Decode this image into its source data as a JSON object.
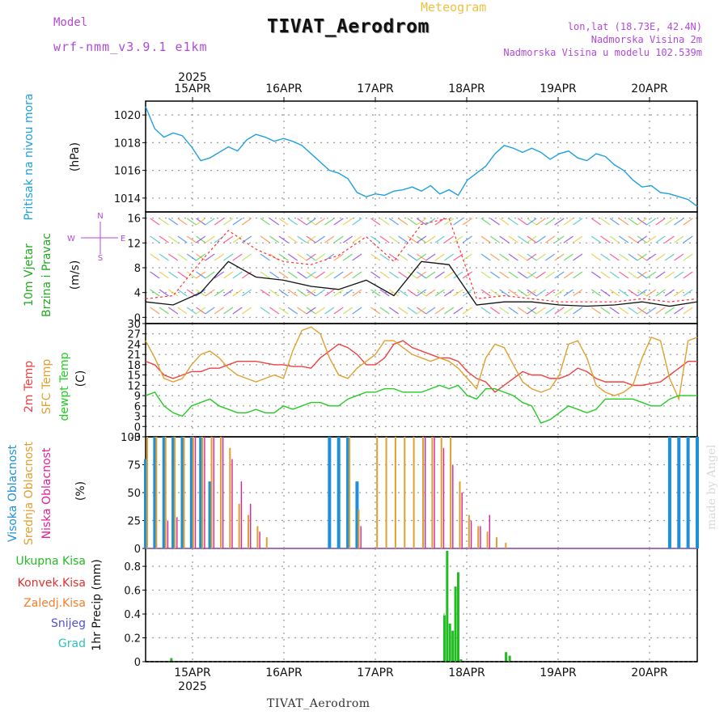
{
  "header": {
    "model_label": "Model",
    "model_name": "wrf-nmm_v3.9.1 e1km",
    "title": "TIVAT_Aerodrom",
    "meteogram_label": "Meteogram",
    "lonlat": "lon,lat (18.73E, 42.4N)",
    "elevation": "Nadmorska Visina 2m",
    "elevation_model": "Nadmorska Visina u modelu 102.539m"
  },
  "footer": {
    "station": "TIVAT_Aerodrom",
    "credit": "made by Angel"
  },
  "colors": {
    "pressure": "#1ea0e0",
    "wind_speed": "#111111",
    "wind_gust": "#ff3030",
    "temp2m": "#f04040",
    "sfc_temp": "#e0a030",
    "dewpt": "#22cc22",
    "cloud_high": "#1e90d8",
    "cloud_mid": "#e0a030",
    "cloud_low": "#e0209a",
    "precip_total": "#22bb22",
    "precip_conv": "#e03030",
    "precip_frz": "#f08030",
    "snow": "#5050e0",
    "hail": "#30c0c0",
    "grid": "#888888"
  },
  "chart_data": [
    {
      "type": "line",
      "name": "pressure",
      "labels": [
        "Pritisak na nivou mora",
        "(hPa)"
      ],
      "x_ticks_top_year": "2025",
      "x_ticks": [
        "15APR",
        "16APR",
        "17APR",
        "18APR",
        "19APR",
        "20APR"
      ],
      "ylim": [
        1013,
        1021
      ],
      "y_ticks": [
        1014,
        1016,
        1018,
        1020
      ],
      "grid": true,
      "series": [
        {
          "x": [
            0,
            1,
            2,
            3,
            4,
            5,
            6,
            7,
            8,
            9,
            10,
            11,
            12,
            13,
            14,
            15,
            16,
            17,
            18,
            19,
            20,
            21,
            22,
            23,
            24,
            25,
            26,
            27,
            28,
            29,
            30,
            31,
            32,
            33,
            34,
            35,
            36,
            37,
            38,
            39,
            40,
            41,
            42,
            43,
            44,
            45,
            46,
            47,
            48,
            49,
            50,
            51,
            52,
            53,
            54,
            55,
            56,
            57,
            58,
            59,
            60
          ],
          "values": [
            1020.6,
            1019.0,
            1018.4,
            1018.7,
            1018.5,
            1017.7,
            1016.7,
            1016.9,
            1017.3,
            1017.7,
            1017.4,
            1018.2,
            1018.6,
            1018.4,
            1018.1,
            1018.3,
            1018.1,
            1017.8,
            1017.2,
            1016.6,
            1016.0,
            1015.8,
            1015.4,
            1014.4,
            1014.1,
            1014.3,
            1014.2,
            1014.5,
            1014.6,
            1014.8,
            1014.5,
            1014.9,
            1014.3,
            1014.6,
            1014.2,
            1015.3,
            1015.8,
            1016.3,
            1017.2,
            1017.8,
            1017.6,
            1017.3,
            1017.6,
            1017.3,
            1016.8,
            1017.2,
            1017.4,
            1016.9,
            1016.7,
            1017.2,
            1017.0,
            1016.4,
            1016.0,
            1015.3,
            1014.8,
            1014.9,
            1014.4,
            1014.3,
            1014.1,
            1013.9,
            1013.4
          ]
        }
      ]
    },
    {
      "type": "line",
      "name": "wind",
      "labels": [
        "10m Vjetar",
        "Brzina i Pravac",
        "(m/s)"
      ],
      "direction_legend": [
        "N",
        "E",
        "S",
        "W"
      ],
      "ylim": [
        -1,
        17
      ],
      "y_ticks": [
        0,
        4,
        8,
        12,
        16
      ],
      "grid": true,
      "series": [
        {
          "x": [
            0,
            3,
            6,
            9,
            12,
            15,
            18,
            21,
            24,
            27,
            30,
            33,
            36,
            39,
            42,
            45,
            48,
            51,
            54,
            57,
            60
          ],
          "values": [
            2.5,
            2.0,
            4.0,
            9.0,
            6.5,
            6.0,
            5.0,
            4.5,
            6.0,
            3.5,
            9.0,
            8.5,
            2.0,
            2.5,
            2.5,
            2.0,
            1.8,
            2.0,
            2.5,
            1.8,
            2.5
          ]
        },
        {
          "x": [
            0,
            3,
            6,
            9,
            12,
            15,
            18,
            21,
            24,
            27,
            30,
            33,
            36,
            39,
            42,
            45,
            48,
            51,
            54,
            57,
            60
          ],
          "values": [
            3.0,
            3.5,
            9.0,
            14.0,
            11.0,
            9.0,
            8.5,
            10.0,
            13.0,
            9.0,
            15.0,
            16.0,
            3.0,
            3.5,
            3.0,
            2.5,
            2.5,
            2.5,
            3.0,
            2.5,
            3.0
          ]
        }
      ]
    },
    {
      "type": "line",
      "name": "temperature",
      "labels": [
        "2m Temp",
        "SFC Temp",
        "dewpt Temp",
        "(C)"
      ],
      "ylim": [
        -3,
        30
      ],
      "y_ticks": [
        -3,
        0,
        3,
        6,
        9,
        12,
        15,
        18,
        21,
        24,
        27,
        30
      ],
      "grid": true,
      "series": [
        {
          "x": [
            0,
            1,
            2,
            3,
            4,
            5,
            6,
            7,
            8,
            9,
            10,
            11,
            12,
            13,
            14,
            15,
            16,
            17,
            18,
            19,
            20,
            21,
            22,
            23,
            24,
            25,
            26,
            27,
            28,
            29,
            30,
            31,
            32,
            33,
            34,
            35,
            36,
            37,
            38,
            39,
            40,
            41,
            42,
            43,
            44,
            45,
            46,
            47,
            48,
            49,
            50,
            51,
            52,
            53,
            54,
            55,
            56,
            57,
            58,
            59,
            60
          ],
          "values": [
            19,
            18,
            15,
            14,
            15,
            16,
            16,
            17,
            17,
            18,
            19,
            19,
            19,
            18.5,
            18,
            18,
            17.5,
            17.5,
            17,
            20,
            22,
            24,
            23,
            21,
            18,
            18,
            20,
            24,
            25,
            23,
            22,
            21,
            20,
            20,
            19,
            16,
            14,
            13,
            10,
            12,
            14,
            16,
            15,
            15,
            14,
            14,
            15,
            17,
            16,
            14,
            13,
            13,
            13,
            12,
            12,
            12.5,
            13,
            15,
            17,
            19,
            19
          ]
        },
        {
          "x": [
            0,
            1,
            2,
            3,
            4,
            5,
            6,
            7,
            8,
            9,
            10,
            11,
            12,
            13,
            14,
            15,
            16,
            17,
            18,
            19,
            20,
            21,
            22,
            23,
            24,
            25,
            26,
            27,
            28,
            29,
            30,
            31,
            32,
            33,
            34,
            35,
            36,
            37,
            38,
            39,
            40,
            41,
            42,
            43,
            44,
            45,
            46,
            47,
            48,
            49,
            50,
            51,
            52,
            53,
            54,
            55,
            56,
            57,
            58,
            59,
            60
          ],
          "values": [
            25,
            20,
            14,
            13,
            14,
            18,
            21,
            22,
            20,
            17,
            15,
            14,
            13,
            14,
            15,
            14,
            22,
            28,
            29,
            27,
            20,
            15,
            14,
            17,
            19,
            21,
            25,
            25,
            23,
            21,
            20,
            19,
            20,
            19,
            17,
            14,
            11,
            20,
            24,
            23,
            18,
            13,
            11,
            10,
            11,
            15,
            24,
            25,
            20,
            12,
            10,
            9,
            10,
            12,
            20,
            26,
            25,
            14,
            8,
            25,
            26
          ]
        },
        {
          "x": [
            0,
            1,
            2,
            3,
            4,
            5,
            6,
            7,
            8,
            9,
            10,
            11,
            12,
            13,
            14,
            15,
            16,
            17,
            18,
            19,
            20,
            21,
            22,
            23,
            24,
            25,
            26,
            27,
            28,
            29,
            30,
            31,
            32,
            33,
            34,
            35,
            36,
            37,
            38,
            39,
            40,
            41,
            42,
            43,
            44,
            45,
            46,
            47,
            48,
            49,
            50,
            51,
            52,
            53,
            54,
            55,
            56,
            57,
            58,
            59,
            60
          ],
          "values": [
            9,
            10,
            6,
            4,
            3,
            6,
            7,
            8,
            6,
            5,
            4,
            4,
            5,
            4,
            4,
            6,
            5,
            6,
            7,
            7,
            6,
            6,
            8,
            9,
            10,
            10,
            11,
            11,
            10,
            10,
            10,
            11,
            12,
            11,
            12,
            9,
            8,
            11,
            11,
            10,
            9,
            7,
            6,
            1,
            2,
            4,
            6,
            5,
            4,
            5,
            8,
            8,
            8,
            8,
            7,
            6,
            6,
            8,
            9,
            9,
            9
          ]
        }
      ]
    },
    {
      "type": "bar",
      "name": "cloud",
      "labels": [
        "Visoka Oblacnost",
        "Srednja Oblacnost",
        "Niska Oblacnost",
        "(%)"
      ],
      "ylim": [
        0,
        100
      ],
      "y_ticks": [
        0,
        25,
        50,
        75,
        100
      ],
      "grid": true,
      "series": [
        {
          "name": "high",
          "x": [
            0,
            1,
            2,
            3,
            4,
            5,
            6,
            7,
            20,
            21,
            22,
            23,
            57,
            58,
            59,
            60
          ],
          "values": [
            80,
            100,
            100,
            100,
            100,
            100,
            100,
            60,
            100,
            100,
            100,
            60,
            100,
            100,
            100,
            100
          ]
        },
        {
          "name": "mid",
          "x": [
            0,
            1,
            2,
            3,
            4,
            5,
            6,
            7,
            8,
            9,
            10,
            11,
            12,
            13,
            22,
            23,
            25,
            26,
            27,
            28,
            29,
            30,
            31,
            32,
            33,
            34,
            35,
            36,
            37,
            38,
            39
          ],
          "values": [
            100,
            100,
            100,
            100,
            100,
            100,
            100,
            100,
            100,
            90,
            40,
            30,
            20,
            10,
            100,
            35,
            100,
            100,
            100,
            100,
            100,
            100,
            100,
            100,
            100,
            60,
            30,
            20,
            15,
            10,
            5
          ]
        },
        {
          "name": "low",
          "x": [
            2,
            3,
            5,
            6,
            7,
            8,
            9,
            10,
            11,
            12,
            23,
            30,
            31,
            32,
            33,
            34,
            35,
            36,
            37
          ],
          "values": [
            25,
            28,
            100,
            100,
            100,
            100,
            80,
            60,
            40,
            15,
            20,
            100,
            100,
            90,
            75,
            50,
            25,
            20,
            30
          ]
        }
      ]
    },
    {
      "type": "bar",
      "name": "precipitation",
      "labels": [
        "Ukupna Kisa",
        "Konvek.Kisa",
        "Zaledj.Kisa",
        "Snijeg",
        "Grad",
        "1hr Precip (mm)"
      ],
      "x_ticks_bottom_year": "2025",
      "x_ticks": [
        "15APR",
        "16APR",
        "17APR",
        "18APR",
        "19APR",
        "20APR"
      ],
      "ylim": [
        0,
        0.95
      ],
      "y_ticks": [
        0,
        0.2,
        0.4,
        0.6,
        0.8
      ],
      "grid": true,
      "series": [
        {
          "name": "total",
          "x": [
            2.8,
            32.5,
            32.8,
            33.1,
            33.4,
            33.7,
            34.0,
            34.3,
            39.2,
            39.6
          ],
          "values": [
            0.03,
            0.39,
            0.93,
            0.32,
            0.26,
            0.63,
            0.75,
            0.02,
            0.08,
            0.05
          ]
        }
      ]
    }
  ]
}
